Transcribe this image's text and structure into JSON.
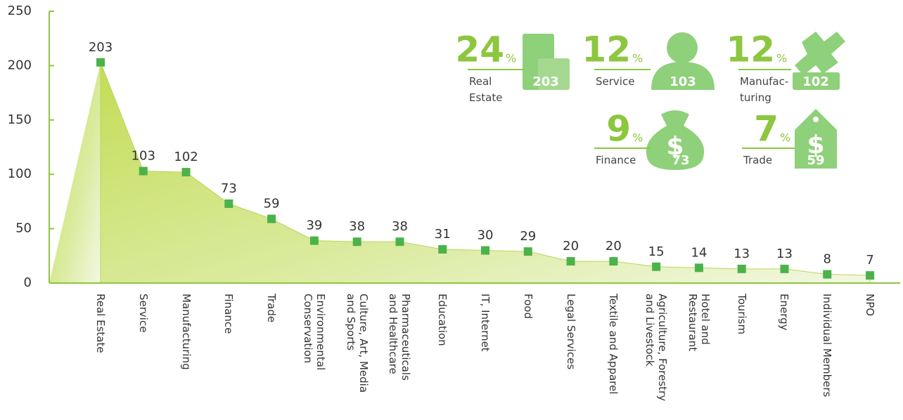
{
  "chart_data": {
    "type": "area",
    "categories": [
      "Real Estate",
      "Service",
      "Manufacturing",
      "Finance",
      "Trade",
      "Environmental\nConservation",
      "Culture, Art, Media\nand Sports",
      "Pharmaceuticals\nand Healthcare",
      "Education",
      "IT, Internet",
      "Food",
      "Legal Services",
      "Textile and Apparel",
      "Agriculture, Forestry\nand Livestock",
      "Hotel and\nRestaurant",
      "Tourism",
      "Energy",
      "Individual Members",
      "NPO"
    ],
    "values": [
      203,
      103,
      102,
      73,
      59,
      39,
      38,
      38,
      31,
      30,
      29,
      20,
      20,
      15,
      14,
      13,
      13,
      8,
      7
    ],
    "color": "#4cb24a",
    "ylim": [
      0,
      250
    ],
    "yticks": [
      0,
      50,
      100,
      150,
      200,
      250
    ]
  },
  "highlights": {
    "unit": "%",
    "items": [
      {
        "percent": 24,
        "label": "Real\nEstate",
        "count": 203
      },
      {
        "percent": 12,
        "label": "Service",
        "count": 103
      },
      {
        "percent": 12,
        "label": "Manufac-\nturing",
        "count": 102
      },
      {
        "percent": 9,
        "label": "Finance",
        "count": 73
      },
      {
        "percent": 7,
        "label": "Trade",
        "count": 59
      }
    ]
  }
}
